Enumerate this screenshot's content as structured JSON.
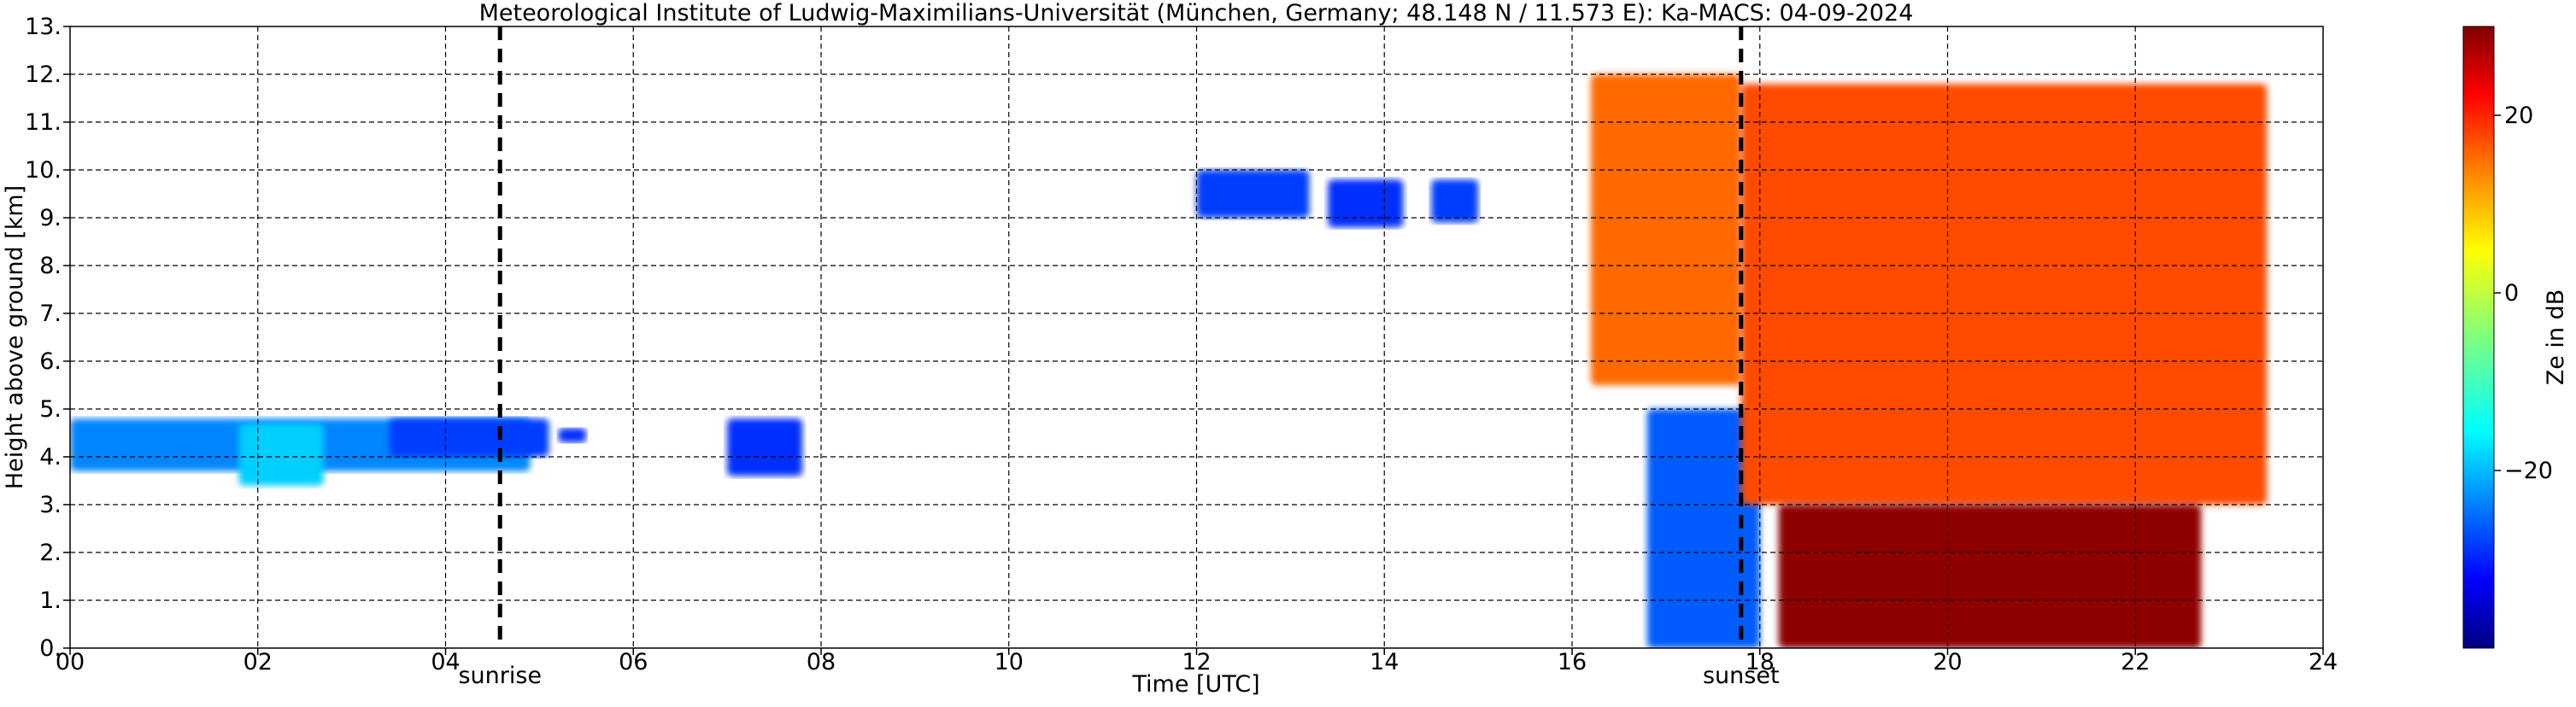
{
  "chart_data": {
    "type": "heatmap",
    "title": "Meteorological Institute of Ludwig-Maximilians-Universität (München, Germany; 48.148 N / 11.573 E):    Ka-MACS: 04-09-2024",
    "xlabel": "Time [UTC]",
    "ylabel": "Height above ground [km]",
    "xlim": [
      0,
      24
    ],
    "ylim": [
      0,
      13
    ],
    "x_ticks": [
      "00",
      "02",
      "04",
      "06",
      "08",
      "10",
      "12",
      "14",
      "16",
      "18",
      "20",
      "22",
      "24"
    ],
    "y_ticks": [
      "0.",
      "1.",
      "2.",
      "3.",
      "4.",
      "5.",
      "6.",
      "7.",
      "8.",
      "9.",
      "10.",
      "11.",
      "12.",
      "13."
    ],
    "grid": true,
    "colorbar": {
      "label": "Ze in dB",
      "range": [
        -40,
        30
      ],
      "ticks": [
        "−20",
        "0",
        "20"
      ],
      "colormap": [
        "#00007f",
        "#0000ff",
        "#007fff",
        "#00ffff",
        "#7fff7f",
        "#ffff00",
        "#ff7f00",
        "#ff0000",
        "#7f0000"
      ]
    },
    "events": [
      {
        "label": "sunrise",
        "time": 4.58
      },
      {
        "label": "sunset",
        "time": 17.8
      }
    ],
    "echo_regions": [
      {
        "t0": 0.0,
        "t1": 4.9,
        "z0": 3.7,
        "z1": 4.8,
        "ze": -22
      },
      {
        "t0": 1.8,
        "t1": 2.7,
        "z0": 3.4,
        "z1": 4.7,
        "ze": -17
      },
      {
        "t0": 3.4,
        "t1": 5.1,
        "z0": 4.0,
        "z1": 4.8,
        "ze": -27
      },
      {
        "t0": 5.2,
        "t1": 5.5,
        "z0": 4.3,
        "z1": 4.6,
        "ze": -28
      },
      {
        "t0": 7.0,
        "t1": 7.8,
        "z0": 3.6,
        "z1": 4.8,
        "ze": -28
      },
      {
        "t0": 12.0,
        "t1": 13.2,
        "z0": 9.0,
        "z1": 10.0,
        "ze": -27
      },
      {
        "t0": 13.4,
        "t1": 14.2,
        "z0": 8.8,
        "z1": 9.8,
        "ze": -28
      },
      {
        "t0": 14.5,
        "t1": 15.0,
        "z0": 8.9,
        "z1": 9.8,
        "ze": -27
      },
      {
        "t0": 16.2,
        "t1": 17.8,
        "z0": 5.5,
        "z1": 12.0,
        "ze": 14
      },
      {
        "t0": 16.8,
        "t1": 18.0,
        "z0": 0.0,
        "z1": 5.0,
        "ze": -25
      },
      {
        "t0": 17.8,
        "t1": 23.4,
        "z0": 3.0,
        "z1": 11.8,
        "ze": 16
      },
      {
        "t0": 18.2,
        "t1": 22.7,
        "z0": 0.0,
        "z1": 3.0,
        "ze": 29
      }
    ]
  }
}
